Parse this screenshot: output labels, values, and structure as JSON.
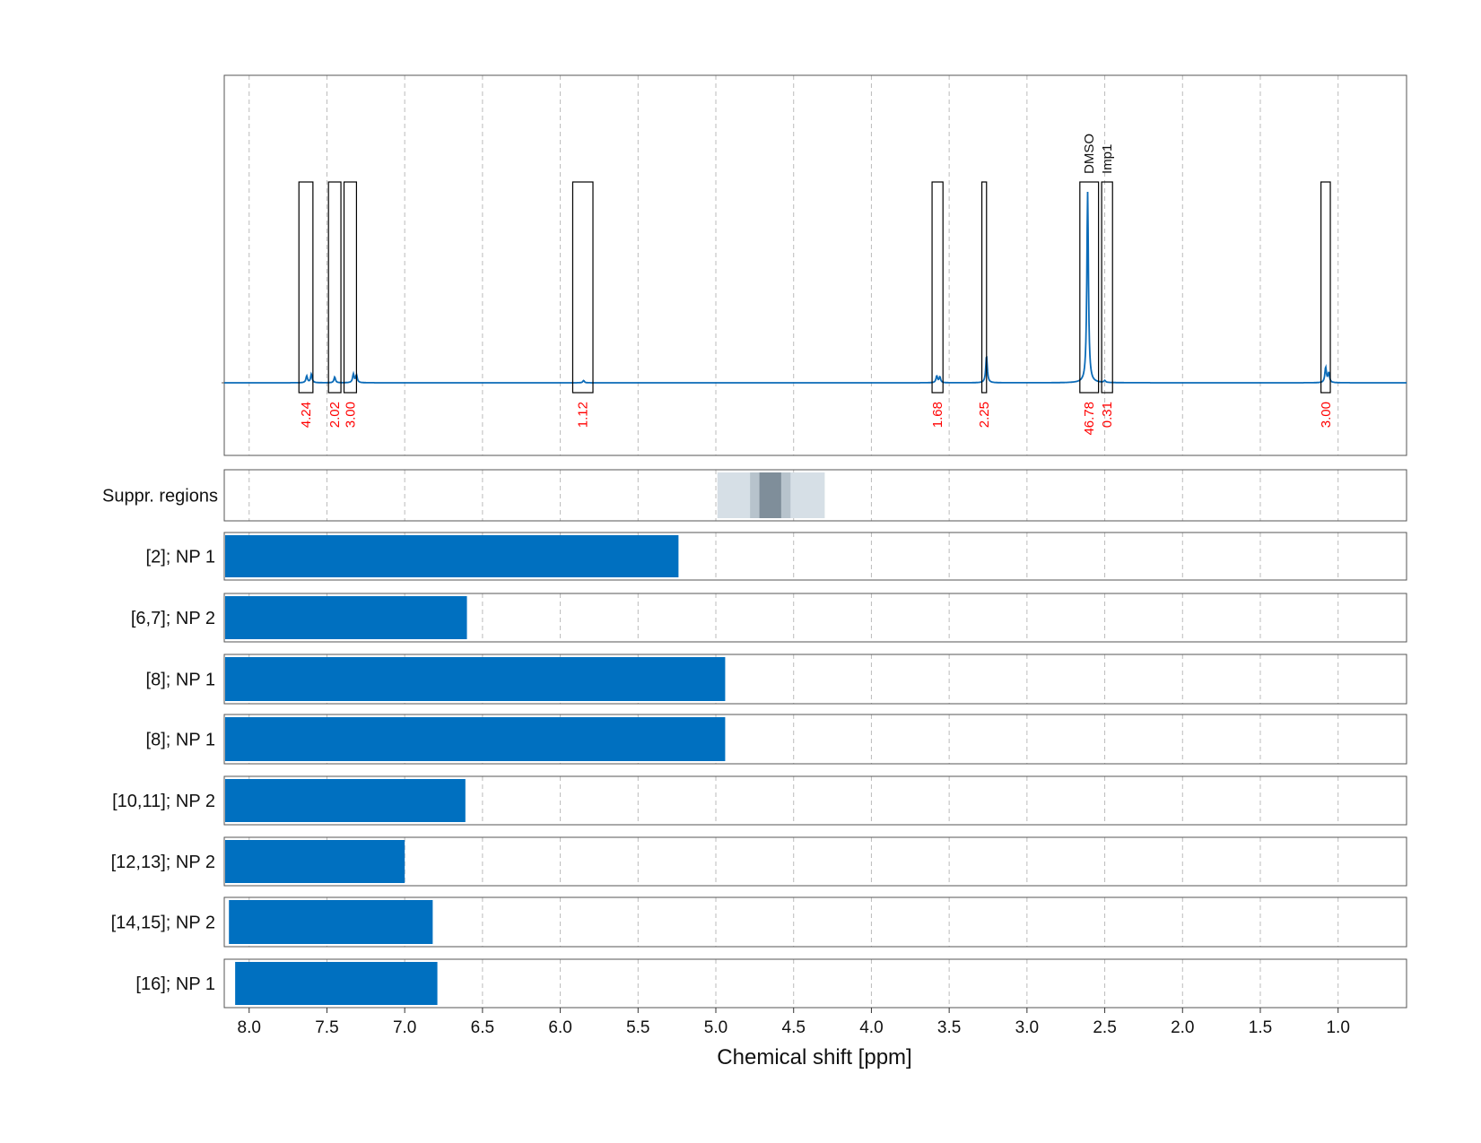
{
  "chart_data": {
    "type": "line",
    "xlabel": "Chemical shift [ppm]",
    "xlim": [
      8.16,
      0.56
    ],
    "x_reversed": true,
    "x_ticks": [
      "8.0",
      "7.5",
      "7.0",
      "6.5",
      "6.0",
      "5.5",
      "5.0",
      "4.5",
      "4.0",
      "3.5",
      "3.0",
      "2.5",
      "2.0",
      "1.5",
      "1.0"
    ],
    "grid": "vertical dashed",
    "spectrum": {
      "baseline": 0,
      "peaks": [
        {
          "ppm": 7.63,
          "height": 0.035
        },
        {
          "ppm": 7.6,
          "height": 0.045
        },
        {
          "ppm": 7.45,
          "height": 0.03
        },
        {
          "ppm": 7.33,
          "height": 0.045
        },
        {
          "ppm": 7.31,
          "height": 0.04
        },
        {
          "ppm": 5.85,
          "height": 0.012
        },
        {
          "ppm": 3.58,
          "height": 0.035
        },
        {
          "ppm": 3.56,
          "height": 0.03
        },
        {
          "ppm": 3.26,
          "height": 0.14
        },
        {
          "ppm": 2.61,
          "height": 1.0
        },
        {
          "ppm": 2.5,
          "height": 0.01
        },
        {
          "ppm": 1.08,
          "height": 0.08
        },
        {
          "ppm": 1.06,
          "height": 0.05
        }
      ]
    },
    "integral_regions": [
      {
        "from": 7.68,
        "to": 7.59,
        "value": "4.24"
      },
      {
        "from": 7.49,
        "to": 7.41,
        "value": "2.02"
      },
      {
        "from": 7.39,
        "to": 7.31,
        "value": "3.00"
      },
      {
        "from": 5.92,
        "to": 5.79,
        "value": "1.12"
      },
      {
        "from": 3.61,
        "to": 3.54,
        "value": "1.68"
      },
      {
        "from": 3.29,
        "to": 3.26,
        "value": "2.25"
      },
      {
        "from": 2.66,
        "to": 2.54,
        "value": "46.78",
        "annotation": "DMSO"
      },
      {
        "from": 2.52,
        "to": 2.45,
        "value": "0.31",
        "annotation": "Imp1"
      },
      {
        "from": 1.11,
        "to": 1.05,
        "value": "3.00"
      }
    ],
    "suppressed_regions": {
      "label": "Suppr. regions",
      "bands": [
        {
          "from": 4.99,
          "to": 4.3,
          "color": "#d6dfe6"
        },
        {
          "from": 4.78,
          "to": 4.52,
          "color": "#b7c3cc"
        },
        {
          "from": 4.72,
          "to": 4.58,
          "color": "#7f8e9a"
        }
      ]
    },
    "range_bars": [
      {
        "label": "[2]; NP 1",
        "from": 8.16,
        "to": 5.24
      },
      {
        "label": "[6,7]; NP 2",
        "from": 8.16,
        "to": 6.6
      },
      {
        "label": "[8]; NP 1",
        "from": 8.16,
        "to": 4.94
      },
      {
        "label": "[8]; NP 1",
        "from": 8.16,
        "to": 4.94
      },
      {
        "label": "[10,11]; NP 2",
        "from": 8.16,
        "to": 6.61
      },
      {
        "label": "[12,13]; NP 2",
        "from": 8.16,
        "to": 7.0
      },
      {
        "label": "[14,15]; NP 2",
        "from": 8.13,
        "to": 6.82
      },
      {
        "label": "[16]; NP 1",
        "from": 8.09,
        "to": 6.79
      }
    ],
    "colors": {
      "spectrum": "#0b6bb8",
      "bar": "#0070c0",
      "integral_value": "#ff0000",
      "region_box": "#000000",
      "grid": "#bbbbbb"
    }
  }
}
